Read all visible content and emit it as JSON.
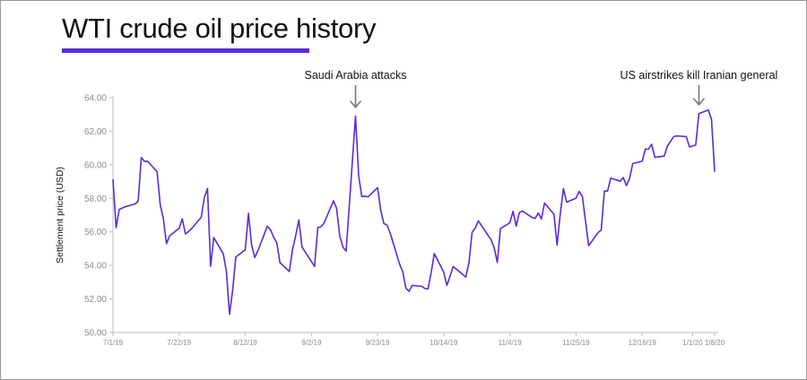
{
  "title": "WTI crude oil price history",
  "chart_data": {
    "type": "line",
    "title": "WTI crude oil price history",
    "xlabel": "",
    "ylabel": "Settlement price (USD)",
    "ylim": [
      50,
      64
    ],
    "yticks": [
      "50.00",
      "52.00",
      "54.00",
      "56.00",
      "58.00",
      "60.00",
      "62.00",
      "64.00"
    ],
    "xlim": [
      "2019-07-01",
      "2020-01-08"
    ],
    "xticks": [
      {
        "date": "2019-07-01",
        "label": "7/1/19"
      },
      {
        "date": "2019-07-22",
        "label": "7/22/19"
      },
      {
        "date": "2019-08-12",
        "label": "8/12/19"
      },
      {
        "date": "2019-09-02",
        "label": "9/2/19"
      },
      {
        "date": "2019-09-23",
        "label": "9/23/19"
      },
      {
        "date": "2019-10-14",
        "label": "10/14/19"
      },
      {
        "date": "2019-11-04",
        "label": "11/4/19"
      },
      {
        "date": "2019-11-25",
        "label": "11/25/19"
      },
      {
        "date": "2019-12-16",
        "label": "12/16/19"
      },
      {
        "date": "2020-01-01",
        "label": "1/1/20"
      },
      {
        "date": "2020-01-08",
        "label": "1/8/20"
      }
    ],
    "grid": false,
    "line_color": "#5b2bd6",
    "series": [
      {
        "x": [
          "2019-07-01",
          "2019-07-02",
          "2019-07-03",
          "2019-07-05",
          "2019-07-08",
          "2019-07-09",
          "2019-07-10",
          "2019-07-11",
          "2019-07-12",
          "2019-07-15",
          "2019-07-16",
          "2019-07-17",
          "2019-07-18",
          "2019-07-19",
          "2019-07-22",
          "2019-07-23",
          "2019-07-24",
          "2019-07-25",
          "2019-07-26",
          "2019-07-29",
          "2019-07-30",
          "2019-07-31",
          "2019-08-01",
          "2019-08-02",
          "2019-08-05",
          "2019-08-06",
          "2019-08-07",
          "2019-08-08",
          "2019-08-09",
          "2019-08-12",
          "2019-08-13",
          "2019-08-14",
          "2019-08-15",
          "2019-08-16",
          "2019-08-19",
          "2019-08-20",
          "2019-08-21",
          "2019-08-22",
          "2019-08-23",
          "2019-08-26",
          "2019-08-27",
          "2019-08-28",
          "2019-08-29",
          "2019-08-30",
          "2019-09-03",
          "2019-09-04",
          "2019-09-05",
          "2019-09-06",
          "2019-09-09",
          "2019-09-10",
          "2019-09-11",
          "2019-09-12",
          "2019-09-13",
          "2019-09-16",
          "2019-09-17",
          "2019-09-18",
          "2019-09-19",
          "2019-09-20",
          "2019-09-23",
          "2019-09-24",
          "2019-09-25",
          "2019-09-26",
          "2019-09-27",
          "2019-09-30",
          "2019-10-01",
          "2019-10-02",
          "2019-10-03",
          "2019-10-04",
          "2019-10-07",
          "2019-10-08",
          "2019-10-09",
          "2019-10-10",
          "2019-10-11",
          "2019-10-14",
          "2019-10-15",
          "2019-10-16",
          "2019-10-17",
          "2019-10-18",
          "2019-10-21",
          "2019-10-22",
          "2019-10-23",
          "2019-10-24",
          "2019-10-25",
          "2019-10-28",
          "2019-10-29",
          "2019-10-30",
          "2019-10-31",
          "2019-11-01",
          "2019-11-04",
          "2019-11-05",
          "2019-11-06",
          "2019-11-07",
          "2019-11-08",
          "2019-11-11",
          "2019-11-12",
          "2019-11-13",
          "2019-11-14",
          "2019-11-15",
          "2019-11-18",
          "2019-11-19",
          "2019-11-20",
          "2019-11-21",
          "2019-11-22",
          "2019-11-25",
          "2019-11-26",
          "2019-11-27",
          "2019-11-29",
          "2019-12-02",
          "2019-12-03",
          "2019-12-04",
          "2019-12-05",
          "2019-12-06",
          "2019-12-09",
          "2019-12-10",
          "2019-12-11",
          "2019-12-12",
          "2019-12-13",
          "2019-12-16",
          "2019-12-17",
          "2019-12-18",
          "2019-12-19",
          "2019-12-20",
          "2019-12-23",
          "2019-12-24",
          "2019-12-26",
          "2019-12-27",
          "2019-12-30",
          "2019-12-31",
          "2020-01-02",
          "2020-01-03",
          "2020-01-06",
          "2020-01-07",
          "2020-01-08"
        ],
        "y": [
          59.1,
          56.25,
          57.34,
          57.51,
          57.66,
          57.83,
          60.43,
          60.2,
          60.21,
          59.58,
          57.62,
          56.78,
          55.3,
          55.76,
          56.22,
          56.77,
          55.88,
          56.02,
          56.2,
          56.87,
          58.05,
          58.58,
          53.95,
          55.66,
          54.69,
          53.63,
          51.09,
          52.54,
          54.5,
          54.93,
          57.1,
          55.23,
          54.47,
          54.87,
          56.34,
          56.13,
          55.68,
          55.35,
          54.17,
          53.64,
          54.93,
          55.78,
          56.71,
          55.1,
          53.94,
          56.26,
          56.3,
          56.52,
          57.85,
          57.4,
          55.75,
          55.09,
          54.85,
          62.9,
          59.34,
          58.11,
          58.13,
          58.09,
          58.64,
          57.29,
          56.49,
          56.41,
          55.91,
          54.07,
          53.62,
          52.64,
          52.45,
          52.81,
          52.75,
          52.63,
          52.59,
          53.55,
          54.7,
          53.59,
          52.81,
          53.36,
          53.93,
          53.78,
          53.31,
          54.16,
          55.97,
          56.23,
          56.66,
          55.81,
          55.54,
          55.06,
          54.18,
          56.2,
          56.54,
          57.23,
          56.35,
          57.15,
          57.24,
          56.86,
          56.8,
          57.12,
          56.77,
          57.72,
          57.05,
          55.21,
          57.11,
          58.58,
          57.77,
          58.01,
          58.41,
          58.11,
          55.17,
          55.96,
          56.1,
          58.43,
          58.43,
          59.2,
          59.02,
          59.24,
          58.76,
          59.18,
          60.07,
          60.21,
          60.94,
          60.93,
          61.22,
          60.44,
          60.52,
          61.11,
          61.68,
          61.72,
          61.68,
          61.06,
          61.18,
          63.05,
          63.27,
          62.7,
          59.61
        ]
      }
    ],
    "annotations": [
      {
        "text": "Saudi Arabia attacks",
        "x": "2019-09-16",
        "y": 62.9
      },
      {
        "text": "US airstrikes kill Iranian general",
        "x": "2020-01-03",
        "y": 63.05
      }
    ]
  }
}
